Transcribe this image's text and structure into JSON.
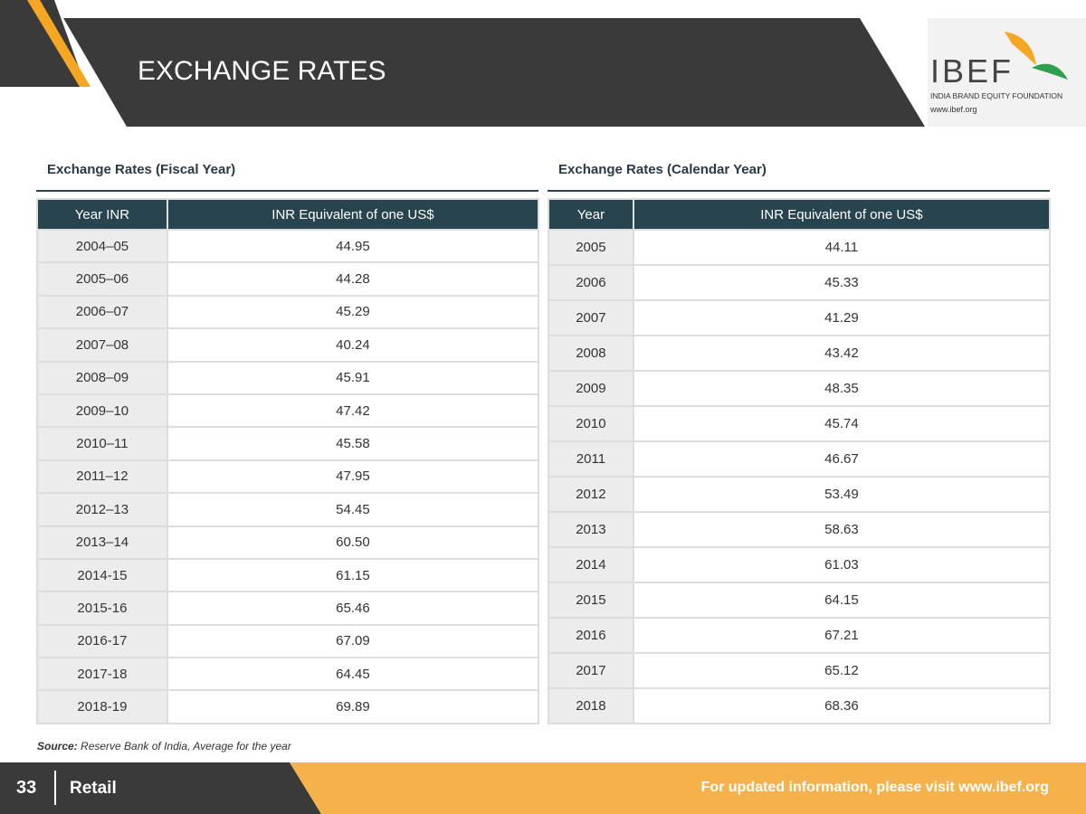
{
  "header": {
    "title": "EXCHANGE RATES"
  },
  "logo": {
    "name": "IBEF",
    "tagline": "INDIA BRAND EQUITY FOUNDATION",
    "url": "www.ibef.org"
  },
  "tables": [
    {
      "title": "Exchange Rates (Fiscal Year)",
      "columns": [
        "Year INR",
        "INR Equivalent of one US$"
      ],
      "rows": [
        [
          "2004–05",
          "44.95"
        ],
        [
          "2005–06",
          "44.28"
        ],
        [
          "2006–07",
          "45.29"
        ],
        [
          "2007–08",
          "40.24"
        ],
        [
          "2008–09",
          "45.91"
        ],
        [
          "2009–10",
          "47.42"
        ],
        [
          "2010–11",
          "45.58"
        ],
        [
          "2011–12",
          "47.95"
        ],
        [
          "2012–13",
          "54.45"
        ],
        [
          "2013–14",
          "60.50"
        ],
        [
          "2014-15",
          "61.15"
        ],
        [
          "2015-16",
          "65.46"
        ],
        [
          "2016-17",
          "67.09"
        ],
        [
          "2017-18",
          "64.45"
        ],
        [
          "2018-19",
          "69.89"
        ]
      ]
    },
    {
      "title": "Exchange Rates (Calendar Year)",
      "columns": [
        "Year",
        "INR Equivalent of one US$"
      ],
      "rows": [
        [
          "2005",
          "44.11"
        ],
        [
          "2006",
          "45.33"
        ],
        [
          "2007",
          "41.29"
        ],
        [
          "2008",
          "43.42"
        ],
        [
          "2009",
          "48.35"
        ],
        [
          "2010",
          "45.74"
        ],
        [
          "2011",
          "46.67"
        ],
        [
          "2012",
          "53.49"
        ],
        [
          "2013",
          "58.63"
        ],
        [
          "2014",
          "61.03"
        ],
        [
          "2015",
          "64.15"
        ],
        [
          "2016",
          "67.21"
        ],
        [
          "2017",
          "65.12"
        ],
        [
          "2018",
          "68.36"
        ]
      ]
    }
  ],
  "source": {
    "label": "Source:",
    "text": "Reserve Bank of India, Average for the year"
  },
  "footer": {
    "page": "33",
    "section": "Retail",
    "note": "For updated information, please visit www.ibef.org"
  }
}
